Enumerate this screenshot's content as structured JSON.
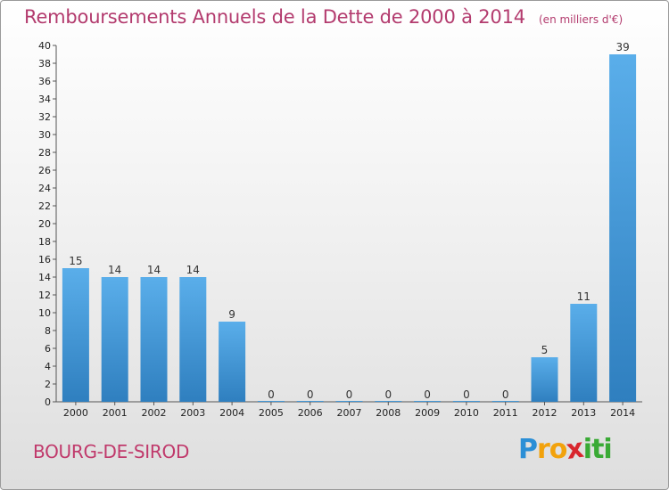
{
  "chart_data": {
    "type": "bar",
    "title": "Remboursements Annuels de la Dette de 2000 à 2014",
    "subtitle": "(en milliers d'€)",
    "categories": [
      "2000",
      "2001",
      "2002",
      "2003",
      "2004",
      "2005",
      "2006",
      "2007",
      "2008",
      "2009",
      "2010",
      "2011",
      "2012",
      "2013",
      "2014"
    ],
    "values": [
      15,
      14,
      14,
      14,
      9,
      0,
      0,
      0,
      0,
      0,
      0,
      0,
      5,
      11,
      39
    ],
    "data_labels": [
      "15",
      "14",
      "14",
      "14",
      "9",
      "0",
      "0",
      "0",
      "0",
      "0",
      "0",
      "0",
      "5",
      "11",
      "39"
    ],
    "ylim": [
      0,
      40
    ],
    "yticks": [
      0,
      2,
      4,
      6,
      8,
      10,
      12,
      14,
      16,
      18,
      20,
      22,
      24,
      26,
      28,
      30,
      32,
      34,
      36,
      38,
      40
    ],
    "grid": false,
    "bar_color": "#4a9ad9"
  },
  "footer": {
    "city": "BOURG-DE-SIROD",
    "logo": [
      "P",
      "r",
      "o",
      "x",
      "i",
      "t",
      "i"
    ],
    "logo_colors": [
      "#2b8fd6",
      "#f2a20c",
      "#f2a20c",
      "#d8262e",
      "#3aaa35",
      "#3aaa35",
      "#3aaa35"
    ]
  }
}
